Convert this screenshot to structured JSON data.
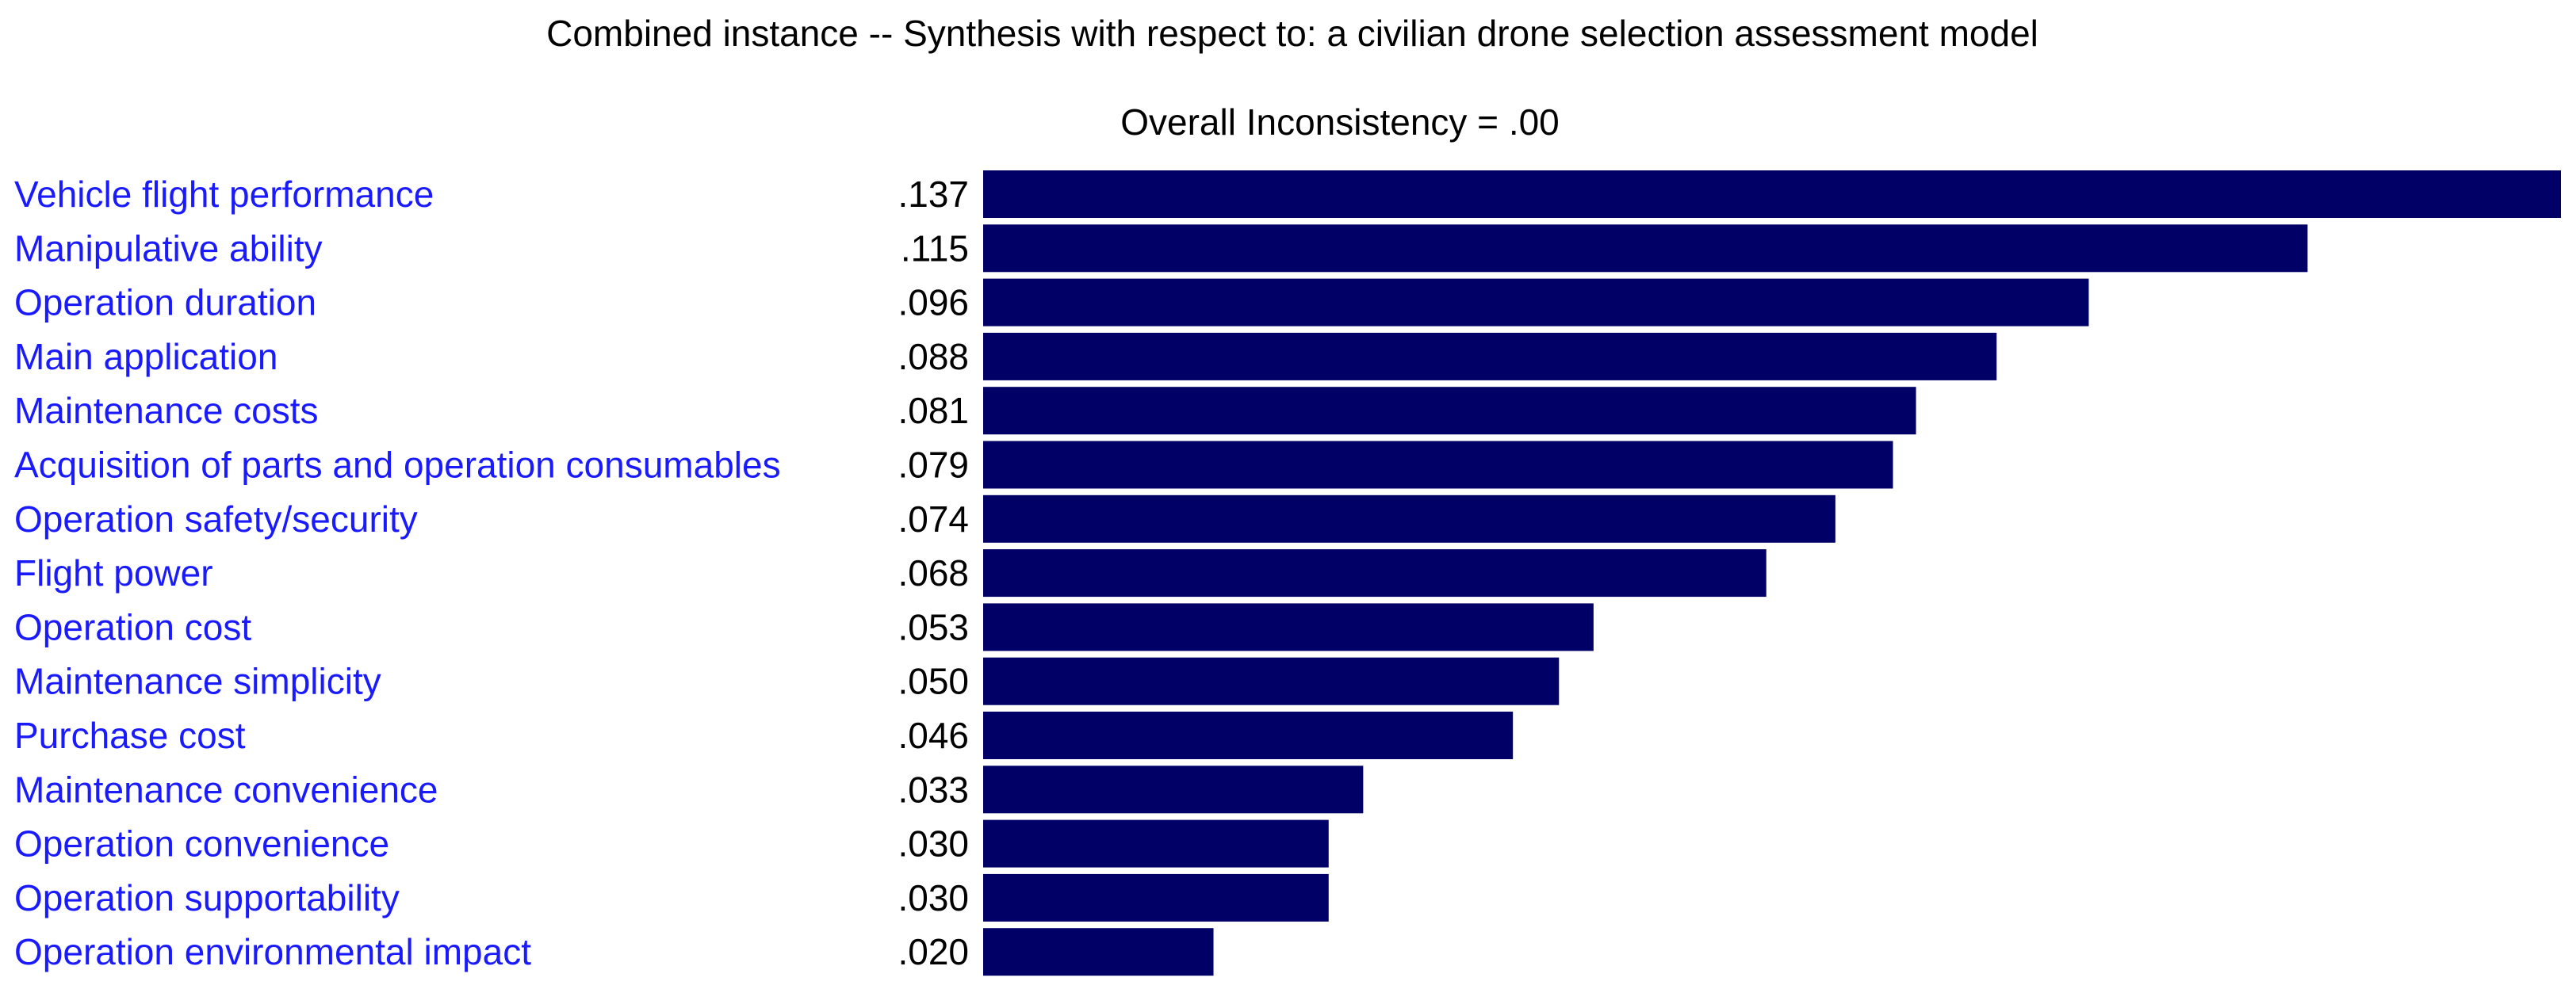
{
  "chart_data": {
    "type": "bar",
    "orientation": "horizontal",
    "title": "Combined instance -- Synthesis with respect to: a civilian drone selection assessment model",
    "subtitle": "Overall Inconsistency = .00",
    "xlabel": "",
    "ylabel": "",
    "xlim": [
      0,
      0.137
    ],
    "grid": false,
    "legend": "none",
    "categories": [
      "Vehicle flight performance",
      "Manipulative ability",
      "Operation duration",
      "Main application",
      "Maintenance costs",
      "Acquisition of parts and operation consumables",
      "Operation safety/security",
      "Flight power",
      "Operation cost",
      "Maintenance simplicity",
      "Purchase cost",
      "Maintenance convenience",
      "Operation convenience",
      "Operation supportability",
      "Operation environmental impact"
    ],
    "values": [
      0.137,
      0.115,
      0.096,
      0.088,
      0.081,
      0.079,
      0.074,
      0.068,
      0.053,
      0.05,
      0.046,
      0.033,
      0.03,
      0.03,
      0.02
    ],
    "value_labels": [
      ".137",
      ".115",
      ".096",
      ".088",
      ".081",
      ".079",
      ".074",
      ".068",
      ".053",
      ".050",
      ".046",
      ".033",
      ".030",
      ".030",
      ".020"
    ]
  },
  "colors": {
    "bar": "#000066",
    "category_label": "#1a1aff",
    "value_label": "#000000",
    "title": "#000000",
    "background": "#ffffff"
  }
}
